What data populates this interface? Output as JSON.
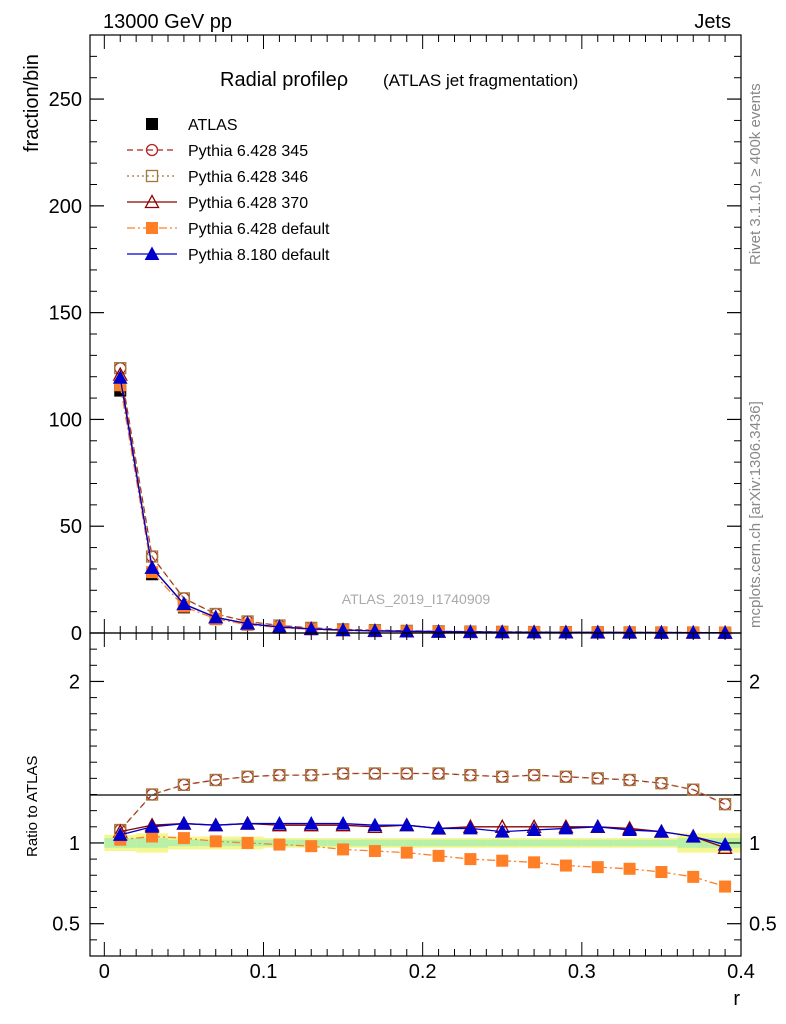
{
  "header": {
    "left": "13000 GeV pp",
    "right": "Jets"
  },
  "side_labels": {
    "rivet": "Rivet 3.1.10, ≥ 400k events",
    "mcplots": "mcplots.cern.ch [arXiv:1306.3436]"
  },
  "watermark": "ATLAS_2019_I1740909",
  "chart_data": [
    {
      "type": "line",
      "panel": "main",
      "title": "Radial profileρ",
      "subtitle": "(ATLAS jet fragmentation)",
      "ylabel": "fraction/bin",
      "ylim": [
        0,
        280
      ],
      "yticks": [
        0,
        50,
        100,
        150,
        200,
        250
      ],
      "ytick_labels": [
        "0",
        "50",
        "100",
        "150",
        "200",
        "250"
      ],
      "xlim": [
        -0.009,
        0.4
      ],
      "x": [
        0.01,
        0.03,
        0.05,
        0.07,
        0.09,
        0.11,
        0.13,
        0.15,
        0.17,
        0.19,
        0.21,
        0.23,
        0.25,
        0.27,
        0.29,
        0.31,
        0.33,
        0.35,
        0.37,
        0.39
      ],
      "legend_position": "top-left",
      "series": [
        {
          "name": "ATLAS",
          "color": "#000000",
          "marker": "square-filled",
          "line": "none",
          "values": [
            113.5,
            27.5,
            12.0,
            6.5,
            3.9,
            2.5,
            1.7,
            1.2,
            0.9,
            0.7,
            0.55,
            0.45,
            0.38,
            0.32,
            0.28,
            0.24,
            0.21,
            0.18,
            0.16,
            0.14
          ]
        },
        {
          "name": "Pythia 6.428 345",
          "color": "#b22222",
          "marker": "circle-open",
          "line": "dashed",
          "values": [
            124,
            35.8,
            16.2,
            8.9,
            5.4,
            3.5,
            2.4,
            1.7,
            1.3,
            1.0,
            0.79,
            0.64,
            0.54,
            0.45,
            0.39,
            0.34,
            0.29,
            0.25,
            0.21,
            0.17
          ]
        },
        {
          "name": "Pythia 6.428 346",
          "color": "#a0783c",
          "marker": "square-open",
          "line": "dotted",
          "values": [
            124,
            35.8,
            16.2,
            8.9,
            5.4,
            3.5,
            2.4,
            1.7,
            1.3,
            1.0,
            0.79,
            0.64,
            0.54,
            0.45,
            0.39,
            0.34,
            0.29,
            0.25,
            0.21,
            0.17
          ]
        },
        {
          "name": "Pythia 6.428 370",
          "color": "#8b0000",
          "marker": "triangle-open",
          "line": "solid",
          "values": [
            121,
            30.5,
            13.5,
            7.3,
            4.4,
            2.8,
            1.9,
            1.35,
            1.0,
            0.78,
            0.61,
            0.5,
            0.42,
            0.36,
            0.31,
            0.27,
            0.23,
            0.2,
            0.17,
            0.14
          ]
        },
        {
          "name": "Pythia 6.428 default",
          "color": "#ff7f27",
          "marker": "square-filled",
          "line": "dashdot",
          "values": [
            116,
            28.5,
            12.4,
            6.6,
            3.9,
            2.5,
            1.7,
            1.18,
            0.87,
            0.67,
            0.52,
            0.42,
            0.35,
            0.3,
            0.25,
            0.21,
            0.19,
            0.16,
            0.13,
            0.11
          ]
        },
        {
          "name": "Pythia 8.180 default",
          "color": "#0000cd",
          "marker": "triangle-filled",
          "line": "solid",
          "values": [
            119.5,
            30.5,
            13.6,
            7.3,
            4.4,
            2.8,
            1.9,
            1.35,
            1.0,
            0.78,
            0.61,
            0.5,
            0.41,
            0.35,
            0.31,
            0.27,
            0.23,
            0.2,
            0.17,
            0.14
          ]
        }
      ]
    },
    {
      "type": "line",
      "panel": "ratio",
      "ylabel": "Ratio to ATLAS",
      "xlabel": "r",
      "ylim": [
        0.3,
        2.3
      ],
      "yticks": [
        0.5,
        1,
        2
      ],
      "ytick_labels": [
        "0.5",
        "1",
        "2"
      ],
      "xlim": [
        -0.009,
        0.4
      ],
      "xticks": [
        0,
        0.1,
        0.2,
        0.3,
        0.4
      ],
      "xtick_labels": [
        "0",
        "0.1",
        "0.2",
        "0.3",
        "0.4"
      ],
      "x": [
        0.01,
        0.03,
        0.05,
        0.07,
        0.09,
        0.11,
        0.13,
        0.15,
        0.17,
        0.19,
        0.21,
        0.23,
        0.25,
        0.27,
        0.29,
        0.31,
        0.33,
        0.35,
        0.37,
        0.39
      ],
      "band_inner": [
        0.03,
        0.03,
        0.02,
        0.02,
        0.02,
        0.02,
        0.02,
        0.02,
        0.02,
        0.02,
        0.02,
        0.02,
        0.02,
        0.02,
        0.02,
        0.02,
        0.02,
        0.02,
        0.03,
        0.03
      ],
      "band_outer": [
        0.05,
        0.06,
        0.04,
        0.04,
        0.04,
        0.03,
        0.03,
        0.03,
        0.03,
        0.03,
        0.03,
        0.03,
        0.03,
        0.03,
        0.03,
        0.03,
        0.03,
        0.03,
        0.06,
        0.06
      ],
      "series": [
        {
          "name": "Pythia 6.428 345",
          "color": "#b22222",
          "marker": "circle-open",
          "line": "dashed",
          "values": [
            1.08,
            1.3,
            1.36,
            1.39,
            1.41,
            1.42,
            1.42,
            1.43,
            1.43,
            1.43,
            1.43,
            1.42,
            1.41,
            1.42,
            1.41,
            1.4,
            1.39,
            1.37,
            1.33,
            1.24
          ]
        },
        {
          "name": "Pythia 6.428 346",
          "color": "#a0783c",
          "marker": "square-open",
          "line": "dotted",
          "values": [
            1.08,
            1.3,
            1.36,
            1.39,
            1.41,
            1.42,
            1.42,
            1.43,
            1.43,
            1.43,
            1.43,
            1.42,
            1.41,
            1.42,
            1.41,
            1.4,
            1.39,
            1.37,
            1.33,
            1.24
          ]
        },
        {
          "name": "Pythia 6.428 370",
          "color": "#8b0000",
          "marker": "triangle-open",
          "line": "solid",
          "values": [
            1.07,
            1.11,
            1.12,
            1.11,
            1.12,
            1.11,
            1.11,
            1.11,
            1.1,
            1.11,
            1.09,
            1.1,
            1.1,
            1.1,
            1.1,
            1.1,
            1.09,
            1.07,
            1.04,
            0.97
          ]
        },
        {
          "name": "Pythia 6.428 default",
          "color": "#ff7f27",
          "marker": "square-filled",
          "line": "dashdot",
          "values": [
            1.02,
            1.04,
            1.03,
            1.01,
            1.0,
            0.99,
            0.98,
            0.96,
            0.95,
            0.94,
            0.92,
            0.9,
            0.89,
            0.88,
            0.86,
            0.85,
            0.84,
            0.82,
            0.79,
            0.73
          ]
        },
        {
          "name": "Pythia 8.180 default",
          "color": "#0000cd",
          "marker": "triangle-filled",
          "line": "solid",
          "values": [
            1.05,
            1.1,
            1.12,
            1.11,
            1.12,
            1.12,
            1.12,
            1.12,
            1.11,
            1.11,
            1.09,
            1.09,
            1.07,
            1.08,
            1.09,
            1.1,
            1.08,
            1.07,
            1.04,
            0.99
          ]
        }
      ]
    }
  ]
}
